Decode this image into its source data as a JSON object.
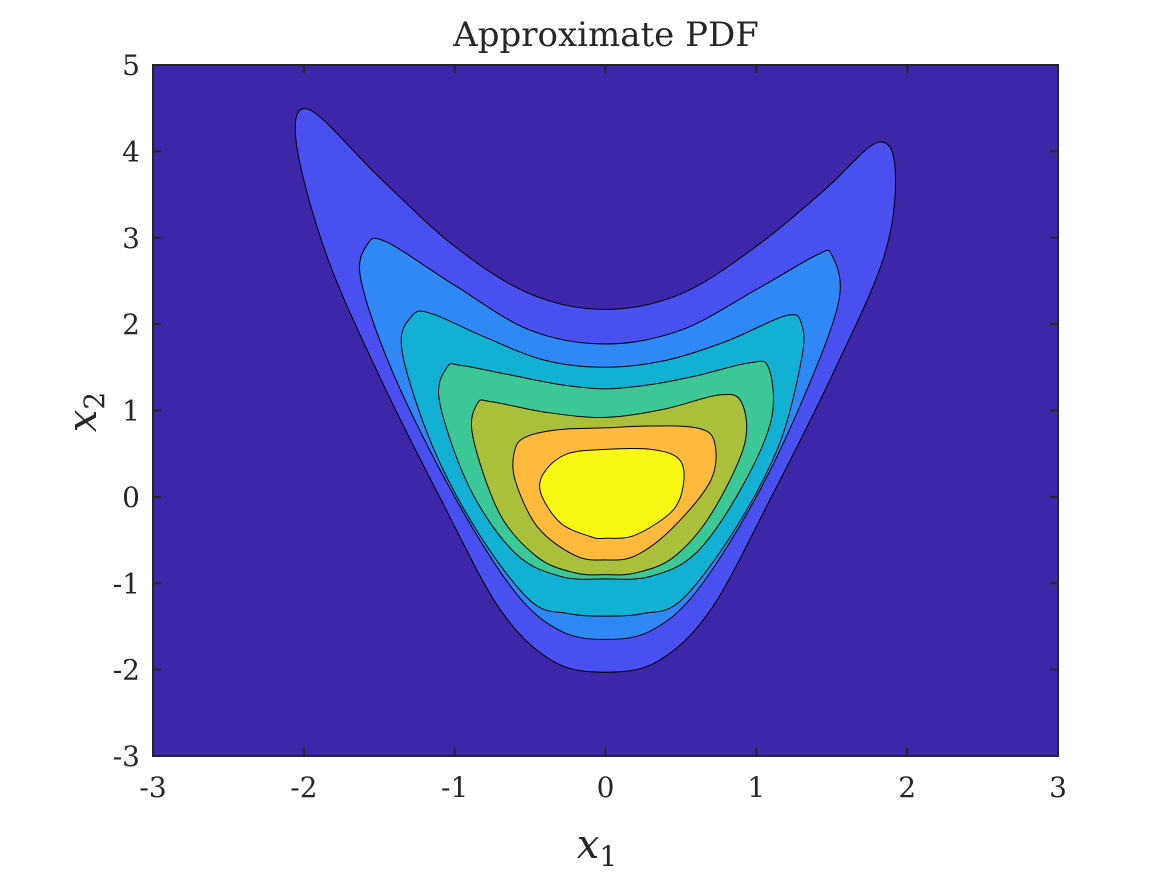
{
  "chart_data": {
    "type": "contour",
    "title": "Approximate PDF",
    "xlabel": "x",
    "xlabel_subscript": "1",
    "ylabel": "x",
    "ylabel_subscript": "2",
    "xlim": [
      -3,
      3
    ],
    "ylim": [
      -3,
      5
    ],
    "xticks": [
      "-3",
      "-2",
      "-1",
      "0",
      "1",
      "2",
      "3"
    ],
    "yticks": [
      "-3",
      "-2",
      "-1",
      "0",
      "1",
      "2",
      "3",
      "4",
      "5"
    ],
    "grid": false,
    "background_color": "#3e26a8",
    "contour_levels": [
      {
        "level": 1,
        "color": "#4a4ff0",
        "points": [
          [
            -1.96,
            4.48
          ],
          [
            -2.05,
            4.1
          ],
          [
            -1.85,
            2.8
          ],
          [
            -1.5,
            1.4
          ],
          [
            -1.1,
            0.0
          ],
          [
            -0.7,
            -1.3
          ],
          [
            -0.35,
            -1.9
          ],
          [
            0.0,
            -2.03
          ],
          [
            0.35,
            -1.9
          ],
          [
            0.7,
            -1.3
          ],
          [
            1.1,
            0.0
          ],
          [
            1.5,
            1.4
          ],
          [
            1.85,
            2.8
          ],
          [
            1.92,
            3.8
          ],
          [
            1.8,
            4.1
          ],
          [
            1.45,
            3.55
          ],
          [
            1.0,
            2.9
          ],
          [
            0.5,
            2.35
          ],
          [
            0.0,
            2.17
          ],
          [
            -0.5,
            2.35
          ],
          [
            -1.0,
            2.9
          ],
          [
            -1.5,
            3.7
          ]
        ]
      },
      {
        "level": 2,
        "color": "#2f88f6",
        "points": [
          [
            -1.58,
            2.92
          ],
          [
            -1.62,
            2.5
          ],
          [
            -1.4,
            1.4
          ],
          [
            -1.0,
            0.0
          ],
          [
            -0.6,
            -1.1
          ],
          [
            -0.3,
            -1.55
          ],
          [
            0.0,
            -1.65
          ],
          [
            0.3,
            -1.55
          ],
          [
            0.6,
            -1.1
          ],
          [
            1.0,
            0.0
          ],
          [
            1.35,
            1.3
          ],
          [
            1.55,
            2.3
          ],
          [
            1.5,
            2.8
          ],
          [
            1.4,
            2.8
          ],
          [
            1.0,
            2.4
          ],
          [
            0.5,
            1.93
          ],
          [
            0.0,
            1.77
          ],
          [
            -0.5,
            1.93
          ],
          [
            -1.0,
            2.45
          ],
          [
            -1.45,
            2.95
          ]
        ]
      },
      {
        "level": 3,
        "color": "#12b1d3",
        "points": [
          [
            -1.28,
            2.1
          ],
          [
            -1.35,
            1.7
          ],
          [
            -1.15,
            0.6
          ],
          [
            -0.85,
            -0.4
          ],
          [
            -0.5,
            -1.2
          ],
          [
            -0.25,
            -1.35
          ],
          [
            0.0,
            -1.38
          ],
          [
            0.25,
            -1.35
          ],
          [
            0.5,
            -1.2
          ],
          [
            0.85,
            -0.4
          ],
          [
            1.15,
            0.6
          ],
          [
            1.3,
            1.6
          ],
          [
            1.3,
            2.0
          ],
          [
            1.2,
            2.1
          ],
          [
            0.8,
            1.8
          ],
          [
            0.4,
            1.58
          ],
          [
            0.0,
            1.5
          ],
          [
            -0.4,
            1.58
          ],
          [
            -0.8,
            1.85
          ],
          [
            -1.15,
            2.12
          ]
        ]
      },
      {
        "level": 4,
        "color": "#3cc796",
        "points": [
          [
            -1.05,
            1.5
          ],
          [
            -1.1,
            1.1
          ],
          [
            -0.9,
            0.1
          ],
          [
            -0.6,
            -0.65
          ],
          [
            -0.3,
            -0.92
          ],
          [
            0.0,
            -0.95
          ],
          [
            0.3,
            -0.92
          ],
          [
            0.6,
            -0.65
          ],
          [
            0.9,
            0.1
          ],
          [
            1.1,
            0.9
          ],
          [
            1.08,
            1.5
          ],
          [
            0.95,
            1.55
          ],
          [
            0.6,
            1.4
          ],
          [
            0.3,
            1.3
          ],
          [
            0.0,
            1.25
          ],
          [
            -0.3,
            1.3
          ],
          [
            -0.6,
            1.4
          ],
          [
            -0.95,
            1.52
          ]
        ]
      },
      {
        "level": 5,
        "color": "#aabf3a",
        "points": [
          [
            -0.85,
            1.08
          ],
          [
            -0.88,
            0.7
          ],
          [
            -0.7,
            -0.2
          ],
          [
            -0.45,
            -0.7
          ],
          [
            -0.2,
            -0.88
          ],
          [
            0.0,
            -0.9
          ],
          [
            0.2,
            -0.88
          ],
          [
            0.45,
            -0.7
          ],
          [
            0.7,
            -0.2
          ],
          [
            0.92,
            0.6
          ],
          [
            0.9,
            1.1
          ],
          [
            0.75,
            1.18
          ],
          [
            0.4,
            1.02
          ],
          [
            0.0,
            0.92
          ],
          [
            -0.4,
            0.98
          ],
          [
            -0.75,
            1.1
          ]
        ]
      },
      {
        "level": 6,
        "color": "#feba3d",
        "points": [
          [
            -0.6,
            0.55
          ],
          [
            -0.6,
            0.2
          ],
          [
            -0.45,
            -0.35
          ],
          [
            -0.2,
            -0.68
          ],
          [
            0.0,
            -0.73
          ],
          [
            0.2,
            -0.68
          ],
          [
            0.45,
            -0.35
          ],
          [
            0.7,
            0.2
          ],
          [
            0.72,
            0.65
          ],
          [
            0.6,
            0.8
          ],
          [
            0.3,
            0.82
          ],
          [
            0.0,
            0.8
          ],
          [
            -0.3,
            0.78
          ],
          [
            -0.52,
            0.7
          ]
        ]
      },
      {
        "level": 7,
        "color": "#f9f815",
        "points": [
          [
            -0.4,
            0.3
          ],
          [
            -0.43,
            0.05
          ],
          [
            -0.3,
            -0.3
          ],
          [
            -0.1,
            -0.46
          ],
          [
            0.0,
            -0.48
          ],
          [
            0.2,
            -0.44
          ],
          [
            0.45,
            -0.15
          ],
          [
            0.52,
            0.2
          ],
          [
            0.48,
            0.45
          ],
          [
            0.3,
            0.55
          ],
          [
            0.0,
            0.55
          ],
          [
            -0.25,
            0.5
          ]
        ]
      }
    ]
  }
}
